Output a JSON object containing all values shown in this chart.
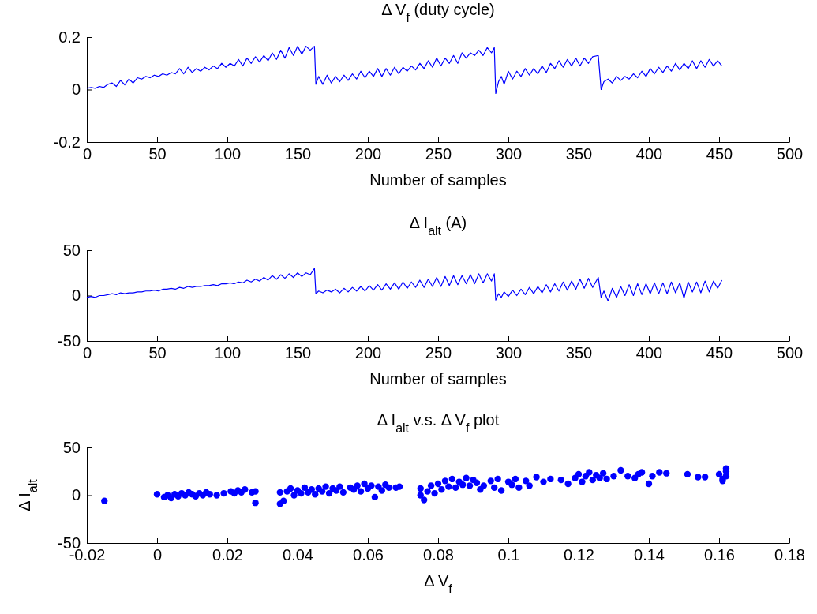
{
  "chart_data": [
    {
      "type": "line",
      "title": "Δ V$_{f}$  (duty cycle)",
      "xlabel": "Number of samples",
      "xlim": [
        0,
        500
      ],
      "xticks": [
        0,
        50,
        100,
        150,
        200,
        250,
        300,
        350,
        400,
        450,
        500
      ],
      "ylim": [
        -0.2,
        0.2
      ],
      "yticks": [
        -0.2,
        0,
        0.2
      ],
      "marker": "none",
      "line_style": "solid",
      "grid": false,
      "series": [
        {
          "color": "#0000ff",
          "x": [
            0,
            3,
            6,
            9,
            12,
            15,
            18,
            21,
            24,
            27,
            30,
            33,
            36,
            39,
            42,
            45,
            48,
            51,
            54,
            57,
            60,
            63,
            66,
            69,
            72,
            75,
            78,
            81,
            84,
            87,
            90,
            93,
            96,
            99,
            102,
            105,
            108,
            111,
            114,
            117,
            120,
            123,
            126,
            129,
            132,
            135,
            138,
            141,
            144,
            147,
            150,
            153,
            156,
            159,
            162,
            163,
            165,
            168,
            171,
            174,
            177,
            180,
            183,
            186,
            189,
            192,
            195,
            198,
            201,
            204,
            207,
            210,
            213,
            216,
            219,
            222,
            225,
            228,
            231,
            234,
            237,
            240,
            243,
            246,
            249,
            252,
            255,
            258,
            261,
            264,
            267,
            270,
            273,
            276,
            279,
            282,
            285,
            288,
            290,
            291,
            293,
            295,
            297,
            300,
            303,
            306,
            309,
            312,
            315,
            318,
            321,
            324,
            327,
            330,
            333,
            336,
            339,
            342,
            345,
            348,
            351,
            354,
            357,
            360,
            364,
            366,
            368,
            371,
            374,
            377,
            380,
            383,
            386,
            389,
            392,
            395,
            398,
            401,
            404,
            407,
            410,
            413,
            416,
            419,
            422,
            425,
            428,
            431,
            434,
            437,
            440,
            443,
            446,
            449,
            452
          ],
          "values": [
            0.005,
            0.008,
            0.005,
            0.012,
            0.008,
            0.02,
            0.025,
            0.012,
            0.035,
            0.018,
            0.04,
            0.025,
            0.045,
            0.04,
            0.05,
            0.045,
            0.055,
            0.05,
            0.06,
            0.055,
            0.065,
            0.06,
            0.08,
            0.06,
            0.085,
            0.065,
            0.08,
            0.07,
            0.085,
            0.075,
            0.09,
            0.08,
            0.1,
            0.085,
            0.1,
            0.09,
            0.115,
            0.09,
            0.12,
            0.1,
            0.125,
            0.105,
            0.13,
            0.11,
            0.14,
            0.115,
            0.15,
            0.12,
            0.16,
            0.13,
            0.165,
            0.135,
            0.165,
            0.15,
            0.165,
            0.02,
            0.05,
            0.02,
            0.055,
            0.025,
            0.05,
            0.03,
            0.055,
            0.035,
            0.06,
            0.04,
            0.07,
            0.045,
            0.07,
            0.05,
            0.08,
            0.05,
            0.08,
            0.055,
            0.085,
            0.06,
            0.085,
            0.07,
            0.09,
            0.075,
            0.1,
            0.08,
            0.11,
            0.085,
            0.12,
            0.09,
            0.12,
            0.1,
            0.13,
            0.1,
            0.14,
            0.12,
            0.14,
            0.13,
            0.15,
            0.13,
            0.16,
            0.14,
            0.16,
            -0.015,
            0.03,
            0.05,
            0.02,
            0.07,
            0.04,
            0.07,
            0.05,
            0.08,
            0.055,
            0.08,
            0.06,
            0.09,
            0.065,
            0.1,
            0.08,
            0.11,
            0.085,
            0.115,
            0.09,
            0.12,
            0.09,
            0.12,
            0.1,
            0.125,
            0.13,
            0,
            0.03,
            0.04,
            0.025,
            0.05,
            0.035,
            0.05,
            0.04,
            0.06,
            0.045,
            0.07,
            0.05,
            0.08,
            0.06,
            0.085,
            0.065,
            0.09,
            0.07,
            0.1,
            0.075,
            0.1,
            0.08,
            0.11,
            0.08,
            0.11,
            0.085,
            0.115,
            0.09,
            0.11,
            0.09
          ]
        }
      ]
    },
    {
      "type": "line",
      "title": "Δ I$_{alt}$ (A)",
      "xlabel": "Number of samples",
      "xlim": [
        0,
        500
      ],
      "xticks": [
        0,
        50,
        100,
        150,
        200,
        250,
        300,
        350,
        400,
        450,
        500
      ],
      "ylim": [
        -50,
        50
      ],
      "yticks": [
        -50,
        0,
        50
      ],
      "marker": "none",
      "line_style": "solid",
      "grid": false,
      "series": [
        {
          "color": "#0000ff",
          "x": [
            0,
            3,
            6,
            9,
            12,
            15,
            18,
            21,
            24,
            27,
            30,
            33,
            36,
            39,
            42,
            45,
            48,
            51,
            54,
            57,
            60,
            63,
            66,
            69,
            72,
            75,
            78,
            81,
            84,
            87,
            90,
            93,
            96,
            99,
            102,
            105,
            108,
            111,
            114,
            117,
            120,
            123,
            126,
            129,
            132,
            135,
            138,
            141,
            144,
            147,
            150,
            153,
            156,
            159,
            162,
            163,
            165,
            168,
            171,
            174,
            177,
            180,
            183,
            186,
            189,
            192,
            195,
            198,
            201,
            204,
            207,
            210,
            213,
            216,
            219,
            222,
            225,
            228,
            231,
            234,
            237,
            240,
            243,
            246,
            249,
            252,
            255,
            258,
            261,
            264,
            267,
            270,
            273,
            276,
            279,
            282,
            285,
            288,
            290,
            291,
            293,
            295,
            297,
            300,
            303,
            306,
            309,
            312,
            315,
            318,
            321,
            324,
            327,
            330,
            333,
            336,
            339,
            342,
            345,
            348,
            351,
            354,
            357,
            360,
            364,
            366,
            368,
            371,
            374,
            377,
            380,
            383,
            386,
            389,
            392,
            395,
            398,
            401,
            404,
            407,
            410,
            413,
            416,
            419,
            422,
            425,
            428,
            431,
            434,
            437,
            440,
            443,
            446,
            449,
            452
          ],
          "values": [
            -2,
            -1,
            -2,
            0,
            0,
            1,
            2,
            1,
            3,
            2,
            3,
            3,
            4,
            4,
            5,
            5,
            6,
            5,
            7,
            7,
            8,
            7,
            9,
            8,
            10,
            9,
            10,
            10,
            11,
            11,
            12,
            11,
            13,
            13,
            14,
            13,
            15,
            14,
            17,
            15,
            18,
            16,
            20,
            17,
            22,
            18,
            23,
            19,
            24,
            20,
            25,
            21,
            25,
            23,
            30,
            2,
            5,
            3,
            6,
            4,
            7,
            3,
            8,
            4,
            9,
            5,
            10,
            5,
            11,
            6,
            12,
            6,
            13,
            7,
            14,
            7,
            15,
            8,
            15,
            9,
            17,
            9,
            18,
            10,
            20,
            10,
            21,
            11,
            22,
            12,
            22,
            13,
            23,
            13,
            24,
            14,
            24,
            16,
            24,
            -5,
            2,
            -2,
            4,
            -1,
            6,
            0,
            7,
            1,
            9,
            2,
            10,
            3,
            12,
            4,
            13,
            5,
            15,
            6,
            16,
            7,
            18,
            8,
            19,
            9,
            20,
            -2,
            5,
            -6,
            8,
            -2,
            10,
            0,
            12,
            0,
            13,
            1,
            13,
            2,
            14,
            2,
            14,
            2,
            15,
            3,
            14,
            -3,
            15,
            4,
            15,
            3,
            16,
            4,
            16,
            8,
            17
          ]
        }
      ]
    },
    {
      "type": "scatter",
      "title": "Δ I$_{alt}$ v.s. Δ V$_{f}$ plot",
      "xlabel": "Δ V$_{f}$",
      "ylabel": "Δ I$_{alt}$",
      "xlim": [
        -0.02,
        0.18
      ],
      "xticks": [
        -0.02,
        0,
        0.02,
        0.04,
        0.06,
        0.08,
        0.1,
        0.12,
        0.14,
        0.16,
        0.18
      ],
      "ylim": [
        -50,
        50
      ],
      "yticks": [
        -50,
        0,
        50
      ],
      "marker": "circle",
      "grid": false,
      "series": [
        {
          "color": "#0000ff",
          "x": [
            -0.015,
            0,
            0.002,
            0.003,
            0.004,
            0.005,
            0.006,
            0.007,
            0.008,
            0.009,
            0.01,
            0.011,
            0.012,
            0.013,
            0.014,
            0.015,
            0.017,
            0.019,
            0.021,
            0.022,
            0.023,
            0.024,
            0.025,
            0.028,
            0.028,
            0.027,
            0.035,
            0.035,
            0.036,
            0.037,
            0.038,
            0.039,
            0.04,
            0.041,
            0.042,
            0.043,
            0.044,
            0.045,
            0.046,
            0.047,
            0.048,
            0.049,
            0.05,
            0.051,
            0.052,
            0.053,
            0.055,
            0.056,
            0.057,
            0.058,
            0.059,
            0.06,
            0.061,
            0.062,
            0.063,
            0.064,
            0.065,
            0.066,
            0.068,
            0.069,
            0.075,
            0.075,
            0.076,
            0.077,
            0.078,
            0.079,
            0.08,
            0.081,
            0.082,
            0.083,
            0.084,
            0.085,
            0.086,
            0.087,
            0.088,
            0.089,
            0.09,
            0.091,
            0.092,
            0.093,
            0.095,
            0.096,
            0.097,
            0.098,
            0.1,
            0.101,
            0.102,
            0.103,
            0.105,
            0.106,
            0.108,
            0.11,
            0.112,
            0.115,
            0.117,
            0.119,
            0.12,
            0.121,
            0.122,
            0.123,
            0.124,
            0.125,
            0.126,
            0.127,
            0.128,
            0.13,
            0.132,
            0.134,
            0.136,
            0.137,
            0.138,
            0.14,
            0.141,
            0.143,
            0.145,
            0.151,
            0.154,
            0.156,
            0.16,
            0.161,
            0.162,
            0.162,
            0.161,
            0.162
          ],
          "values": [
            -6,
            1,
            -2,
            0,
            -3,
            1,
            -1,
            2,
            0,
            3,
            1,
            -1,
            2,
            0,
            3,
            1,
            0,
            2,
            4,
            2,
            5,
            3,
            6,
            4,
            -8,
            3,
            3,
            -9,
            -6,
            4,
            7,
            0,
            5,
            2,
            8,
            3,
            6,
            1,
            7,
            4,
            9,
            2,
            7,
            5,
            9,
            3,
            8,
            6,
            10,
            4,
            12,
            7,
            10,
            -2,
            9,
            5,
            11,
            8,
            8,
            9,
            7,
            0,
            -5,
            4,
            10,
            2,
            12,
            6,
            15,
            9,
            17,
            8,
            14,
            11,
            18,
            10,
            16,
            13,
            6,
            10,
            15,
            8,
            17,
            5,
            14,
            11,
            17,
            8,
            15,
            10,
            19,
            14,
            17,
            16,
            12,
            18,
            22,
            14,
            20,
            24,
            16,
            21,
            18,
            23,
            17,
            20,
            26,
            20,
            18,
            22,
            24,
            12,
            20,
            24,
            23,
            22,
            19,
            19,
            22,
            17,
            28,
            25,
            15,
            20
          ]
        }
      ]
    }
  ]
}
